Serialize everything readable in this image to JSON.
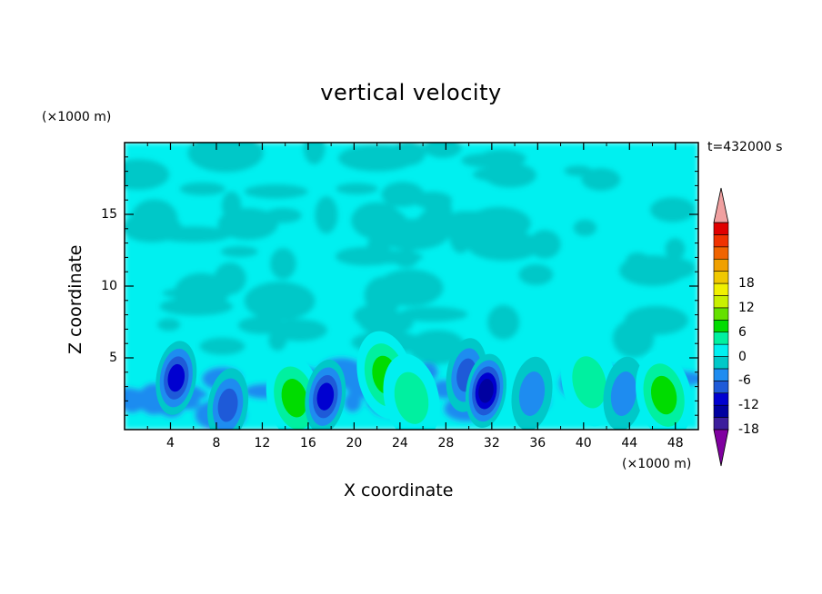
{
  "chart_data": {
    "type": "heatmap",
    "title": "vertical velocity",
    "xlabel": "X coordinate",
    "ylabel": "Z coordinate",
    "x_unit": "(×1000 m)",
    "y_unit": "(×1000 m)",
    "time_label": "t=432000 s",
    "xlim": [
      0,
      50
    ],
    "ylim": [
      0,
      20
    ],
    "x_ticks": [
      "4",
      "8",
      "12",
      "16",
      "20",
      "24",
      "28",
      "32",
      "36",
      "40",
      "44",
      "48"
    ],
    "y_ticks": [
      "5",
      "10",
      "15"
    ],
    "colorbar": {
      "ticks": [
        "18",
        "12",
        "6",
        "0",
        "-6",
        "-12",
        "-18"
      ],
      "range": [
        -21,
        21
      ],
      "step": 3,
      "colors": [
        "#8000a0",
        "#3c1e9c",
        "#0000a0",
        "#0000d0",
        "#1e5ad8",
        "#1e8cf0",
        "#00c8c8",
        "#00f0f0",
        "#00f0a0",
        "#00dc00",
        "#64e000",
        "#c8f000",
        "#f0f000",
        "#f0c800",
        "#f0a000",
        "#f06400",
        "#f03200",
        "#e00000",
        "#f0a0a0"
      ]
    },
    "features": [
      {
        "x": 4.5,
        "z": 3.6,
        "w": -12
      },
      {
        "x": 9.0,
        "z": 1.7,
        "w": -9
      },
      {
        "x": 14.8,
        "z": 2.2,
        "w": 8
      },
      {
        "x": 17.5,
        "z": 2.3,
        "w": -13
      },
      {
        "x": 22.7,
        "z": 3.8,
        "w": 8
      },
      {
        "x": 25.0,
        "z": 2.2,
        "w": 7
      },
      {
        "x": 29.8,
        "z": 3.8,
        "w": -9
      },
      {
        "x": 31.5,
        "z": 2.7,
        "w": -14
      },
      {
        "x": 35.5,
        "z": 2.5,
        "w": -6
      },
      {
        "x": 40.5,
        "z": 3.3,
        "w": 6
      },
      {
        "x": 43.5,
        "z": 2.5,
        "w": -5
      },
      {
        "x": 47.0,
        "z": 2.4,
        "w": 8
      }
    ]
  }
}
